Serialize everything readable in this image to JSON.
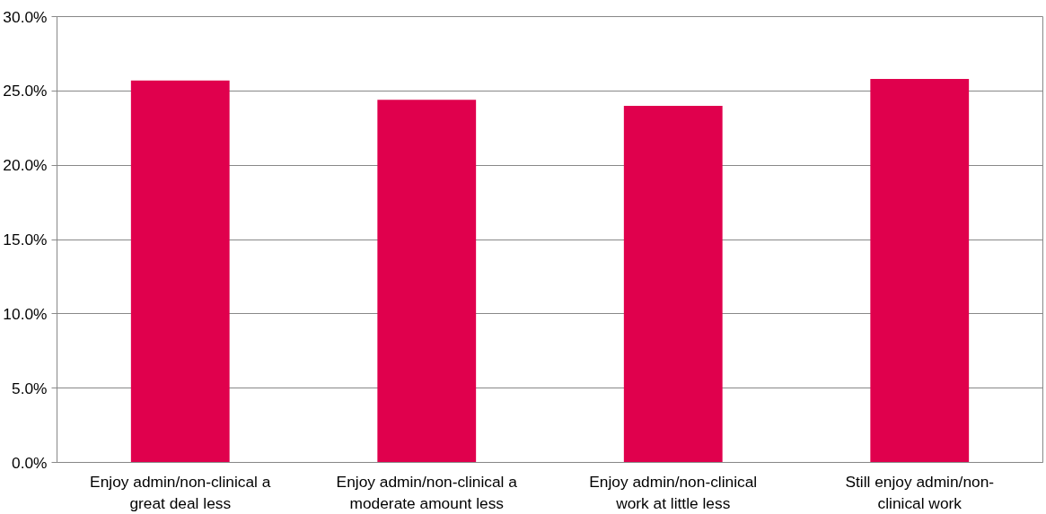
{
  "chart_data": {
    "type": "bar",
    "categories": [
      "Enjoy admin/non-clinical a great deal less",
      "Enjoy admin/non-clinical a moderate amount less",
      "Enjoy admin/non-clinical work at little less",
      "Still enjoy admin/non-clinical work"
    ],
    "values": [
      25.7,
      24.4,
      24.0,
      25.8
    ],
    "color": "#e0004d",
    "ylim": [
      0,
      30
    ],
    "yticks": [
      {
        "value": 0,
        "label": "0.0%"
      },
      {
        "value": 5,
        "label": "5.0%"
      },
      {
        "value": 10,
        "label": "10.0%"
      },
      {
        "value": 15,
        "label": "15.0%"
      },
      {
        "value": 20,
        "label": "20.0%"
      },
      {
        "value": 25,
        "label": "25.0%"
      },
      {
        "value": 30,
        "label": "30.0%"
      }
    ],
    "grid": "y"
  }
}
